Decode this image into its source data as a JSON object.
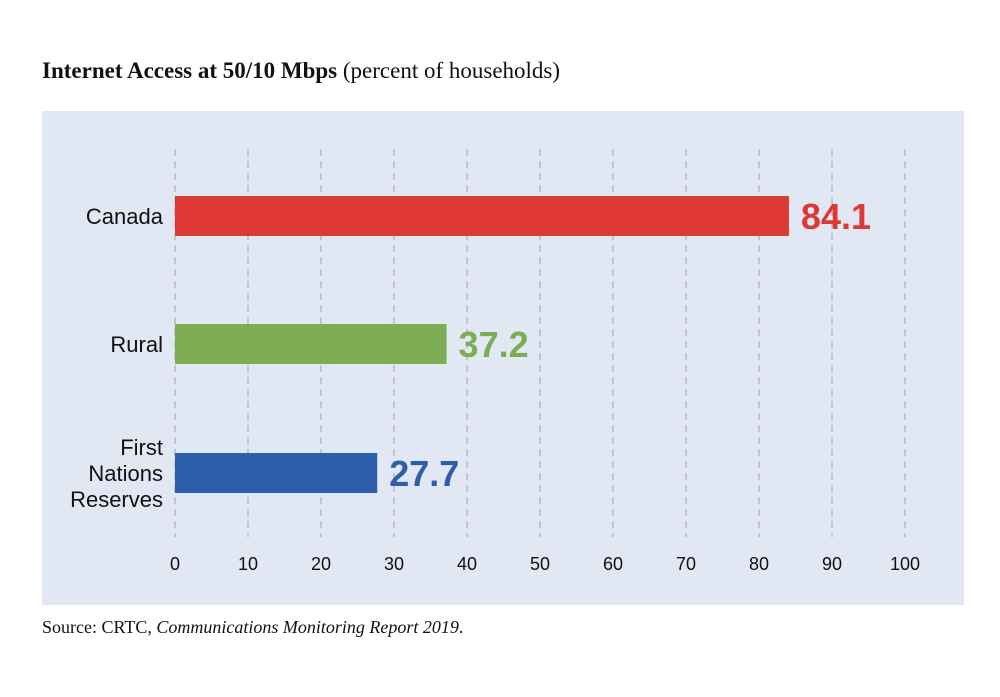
{
  "chart_data": {
    "type": "bar",
    "orientation": "horizontal",
    "title_bold": "Internet Access at 50/10 Mbps",
    "title_rest": "(percent of households)",
    "categories": [
      {
        "lines": [
          "Canada"
        ]
      },
      {
        "lines": [
          "Rural"
        ]
      },
      {
        "lines": [
          "First",
          "Nations",
          "Reserves"
        ]
      }
    ],
    "values": [
      84.1,
      37.2,
      27.7
    ],
    "value_labels": [
      "84.1",
      "37.2",
      "27.7"
    ],
    "colors": [
      "#de3835",
      "#7cad54",
      "#2d5ea9"
    ],
    "xlim": [
      0,
      100
    ],
    "xticks": [
      0,
      10,
      20,
      30,
      40,
      50,
      60,
      70,
      80,
      90,
      100
    ],
    "xtick_labels": [
      "0",
      "10",
      "20",
      "30",
      "40",
      "50",
      "60",
      "70",
      "80",
      "90",
      "100"
    ],
    "grid": "vertical-dashed",
    "legend": "none"
  },
  "source": {
    "prefix": "Source: CRTC,",
    "title": "Communications Monitoring Report 2019",
    "suffix": "."
  }
}
